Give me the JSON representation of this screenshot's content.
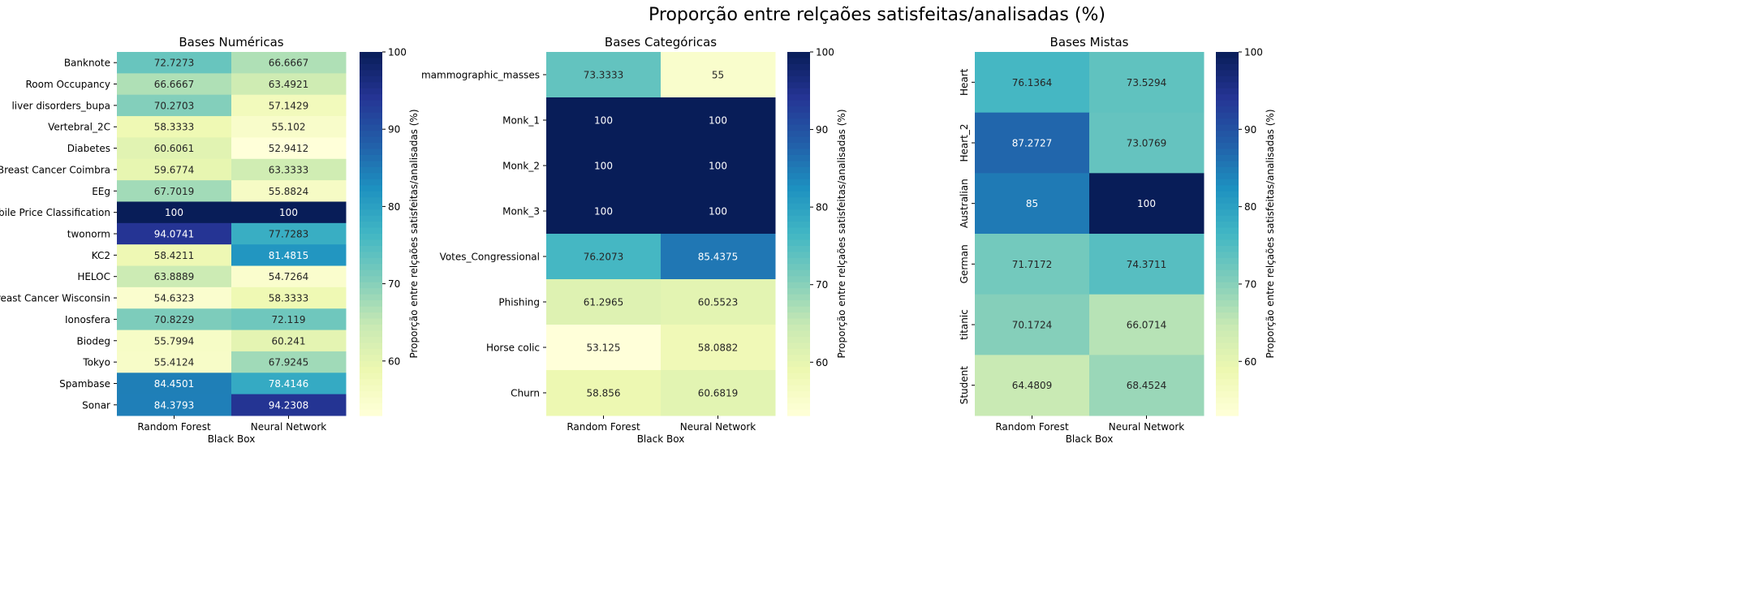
{
  "suptitle": "Proporção entre relçaões satisfeitas/analisadas (%)",
  "colormap": [
    "#ffffd9",
    "#edf8b1",
    "#c7e9b4",
    "#7fcdbb",
    "#41b6c4",
    "#1d91c0",
    "#225ea8",
    "#253494",
    "#081d58"
  ],
  "chart_data": [
    {
      "type": "heatmap",
      "title": "Bases Numéricas",
      "xlabel": "Black Box",
      "ylabel": "",
      "x_categories": [
        "Random Forest",
        "Neural Network"
      ],
      "y_categories": [
        "Banknote",
        "Room Occupancy",
        "liver disorders_bupa",
        "Vertebral_2C",
        "Diabetes",
        "Breast Cancer Coimbra",
        "EEg",
        "Mobile Price Classification",
        "twonorm",
        "KC2",
        "HELOC",
        "Breast Cancer Wisconsin",
        "Ionosfera",
        "Biodeg",
        "Tokyo",
        "Spambase",
        "Sonar"
      ],
      "values": [
        [
          "72.7273",
          "66.6667"
        ],
        [
          "66.6667",
          "63.4921"
        ],
        [
          "70.2703",
          "57.1429"
        ],
        [
          "58.3333",
          "55.102"
        ],
        [
          "60.6061",
          "52.9412"
        ],
        [
          "59.6774",
          "63.3333"
        ],
        [
          "67.7019",
          "55.8824"
        ],
        [
          "100",
          "100"
        ],
        [
          "94.0741",
          "77.7283"
        ],
        [
          "58.4211",
          "81.4815"
        ],
        [
          "63.8889",
          "54.7264"
        ],
        [
          "54.6323",
          "58.3333"
        ],
        [
          "70.8229",
          "72.119"
        ],
        [
          "55.7994",
          "60.241"
        ],
        [
          "55.4124",
          "67.9245"
        ],
        [
          "84.4501",
          "78.4146"
        ],
        [
          "84.3793",
          "94.2308"
        ]
      ],
      "colorbar": {
        "label": "Proporção entre relçaões satisfeitas/analisadas (%)",
        "ticks": [
          "60",
          "70",
          "80",
          "90",
          "100"
        ],
        "range": [
          52.9412,
          100
        ]
      },
      "ytick_rotation": 0
    },
    {
      "type": "heatmap",
      "title": "Bases Categóricas",
      "xlabel": "Black Box",
      "ylabel": "",
      "x_categories": [
        "Random Forest",
        "Neural Network"
      ],
      "y_categories": [
        "mammographic_masses",
        "Monk_1",
        "Monk_2",
        "Monk_3",
        "Votes_Congressional",
        "Phishing",
        "Horse colic",
        "Churn"
      ],
      "values": [
        [
          "73.3333",
          "55"
        ],
        [
          "100",
          "100"
        ],
        [
          "100",
          "100"
        ],
        [
          "100",
          "100"
        ],
        [
          "76.2073",
          "85.4375"
        ],
        [
          "61.2965",
          "60.5523"
        ],
        [
          "53.125",
          "58.0882"
        ],
        [
          "58.856",
          "60.6819"
        ]
      ],
      "colorbar": {
        "label": "Proporção entre relçaões satisfeitas/analisadas (%)",
        "ticks": [
          "60",
          "70",
          "80",
          "90",
          "100"
        ],
        "range": [
          53.125,
          100
        ]
      },
      "ytick_rotation": 0
    },
    {
      "type": "heatmap",
      "title": "Bases Mistas",
      "xlabel": "Black Box",
      "ylabel": "",
      "x_categories": [
        "Random Forest",
        "Neural Network"
      ],
      "y_categories": [
        "Heart",
        "Heart_2",
        "Australian",
        "German",
        "titanic",
        "Student"
      ],
      "values": [
        [
          "76.1364",
          "73.5294"
        ],
        [
          "87.2727",
          "73.0769"
        ],
        [
          "85",
          "100"
        ],
        [
          "71.7172",
          "74.3711"
        ],
        [
          "70.1724",
          "66.0714"
        ],
        [
          "64.4809",
          "68.4524"
        ]
      ],
      "colorbar": {
        "label": "Proporção entre relçaões satisfeitas/analisadas (%)",
        "ticks": [
          "60",
          "70",
          "80",
          "90",
          "100"
        ],
        "range": [
          53.0,
          100
        ]
      },
      "ytick_rotation": 90
    }
  ]
}
